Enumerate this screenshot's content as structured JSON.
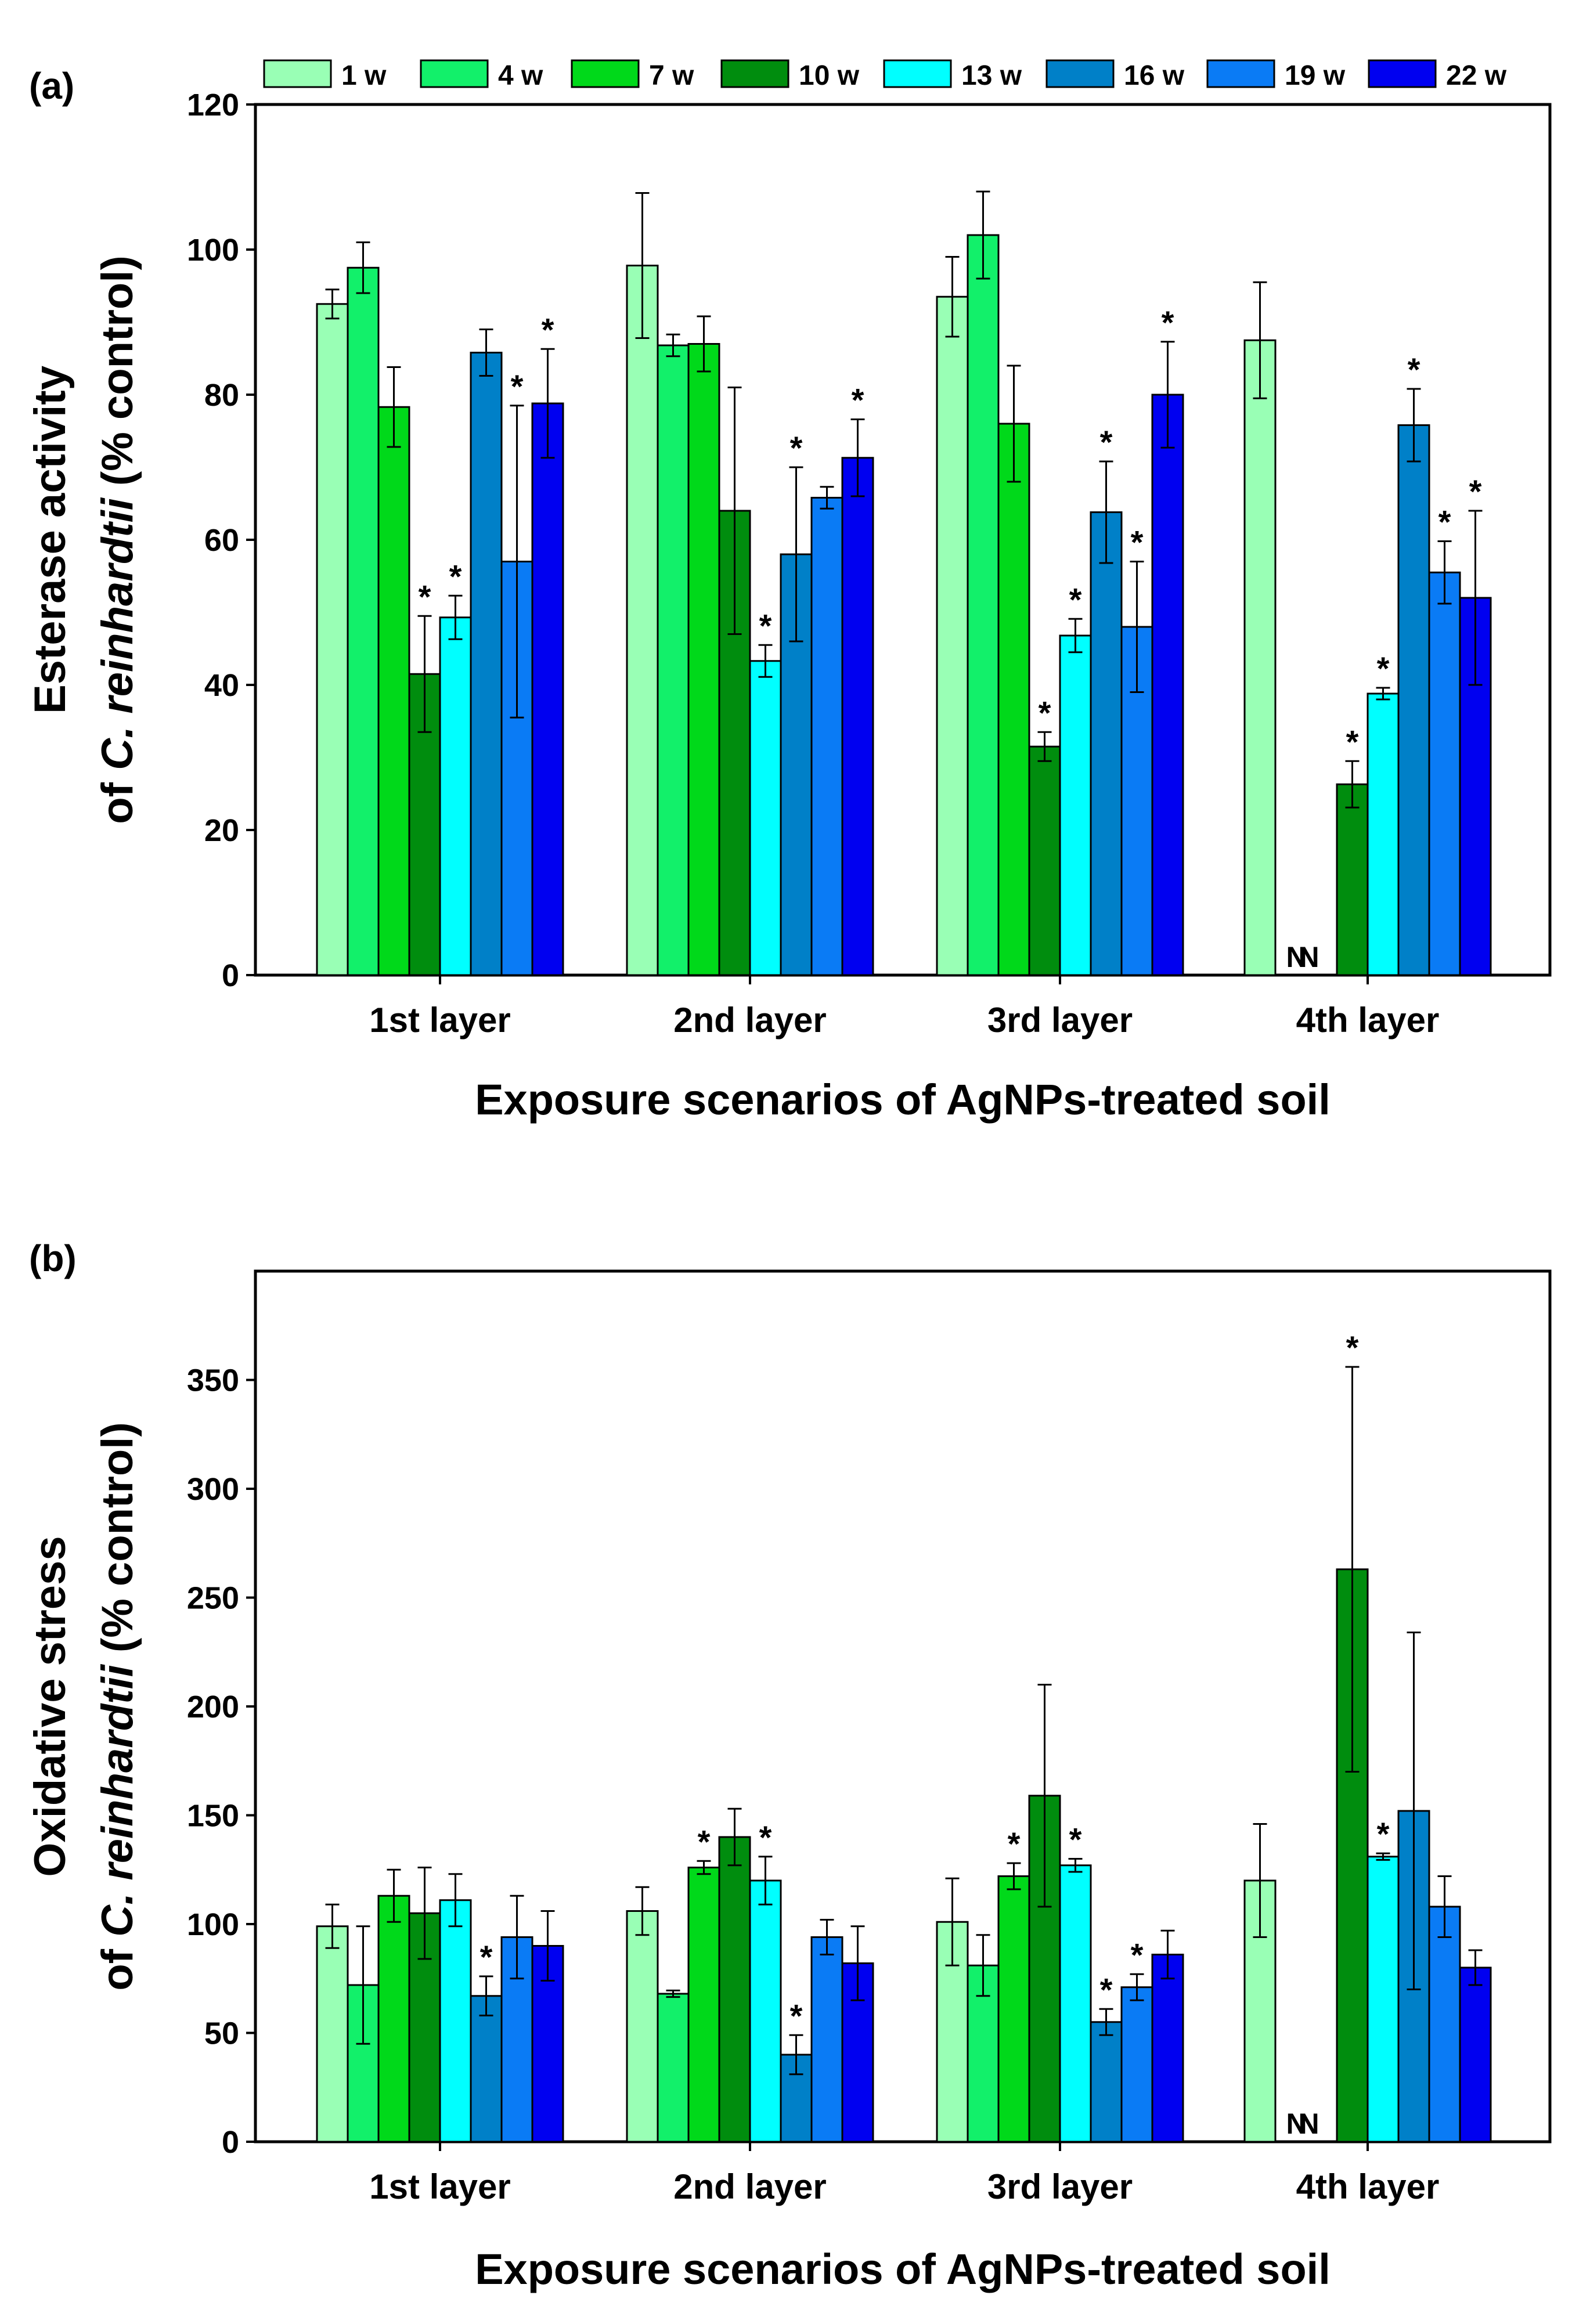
{
  "legend": {
    "labels": [
      "1 w",
      "4 w",
      "7 w",
      "10 w",
      "13 w",
      "16 w",
      "19 w",
      "22 w"
    ],
    "colors": [
      "#99ffb5",
      "#12f06a",
      "#00d91a",
      "#008d0e",
      "#00ffff",
      "#0080c8",
      "#0a7bf5",
      "#0000f0"
    ]
  },
  "chart_data": [
    {
      "type": "bar",
      "panel_label": "(a)",
      "ylabel_line1": "Esterase activity",
      "ylabel_line2_prefix": "of ",
      "ylabel_line2_species": "C. reinhardtii",
      "ylabel_line2_suffix": " (% control)",
      "xlabel": "Exposure scenarios of AgNPs-treated soil",
      "categories": [
        "1st layer",
        "2nd layer",
        "3rd layer",
        "4th layer"
      ],
      "ylim": [
        0,
        120
      ],
      "yticks": [
        0,
        20,
        40,
        60,
        80,
        100,
        120
      ],
      "series": [
        {
          "name": "1 w",
          "values": [
            92.5,
            97.8,
            93.5,
            87.5
          ],
          "errors": [
            2.0,
            10.0,
            5.5,
            8.0
          ],
          "stars": [
            false,
            false,
            false,
            false
          ]
        },
        {
          "name": "4 w",
          "values": [
            97.5,
            86.8,
            102.0,
            null
          ],
          "errors": [
            3.5,
            1.5,
            6.0,
            null
          ],
          "stars": [
            false,
            false,
            false,
            false
          ]
        },
        {
          "name": "7 w",
          "values": [
            78.3,
            87.0,
            76.0,
            null
          ],
          "errors": [
            5.5,
            3.8,
            8.0,
            null
          ],
          "stars": [
            false,
            false,
            false,
            false
          ]
        },
        {
          "name": "10 w",
          "values": [
            41.5,
            64.0,
            31.5,
            26.3
          ],
          "errors": [
            8.0,
            17.0,
            2.0,
            3.2
          ],
          "stars": [
            true,
            false,
            true,
            true
          ]
        },
        {
          "name": "13 w",
          "values": [
            49.3,
            43.3,
            46.8,
            38.8
          ],
          "errors": [
            3.0,
            2.2,
            2.3,
            0.8
          ],
          "stars": [
            true,
            true,
            true,
            true
          ]
        },
        {
          "name": "16 w",
          "values": [
            85.8,
            58.0,
            63.8,
            75.8
          ],
          "errors": [
            3.2,
            12.0,
            7.0,
            5.0
          ],
          "stars": [
            false,
            true,
            true,
            true
          ]
        },
        {
          "name": "19 w",
          "values": [
            57.0,
            65.8,
            48.0,
            55.5
          ],
          "errors": [
            21.5,
            1.5,
            9.0,
            4.3
          ],
          "stars": [
            true,
            false,
            true,
            true
          ]
        },
        {
          "name": "22 w",
          "values": [
            78.8,
            71.3,
            80.0,
            52.0
          ],
          "errors": [
            7.5,
            5.3,
            7.3,
            12.0
          ],
          "stars": [
            true,
            true,
            true,
            true
          ]
        }
      ],
      "na_marks": [
        {
          "category": "4th layer",
          "series": [
            "4 w",
            "7 w"
          ],
          "text": "N"
        }
      ]
    },
    {
      "type": "bar",
      "panel_label": "(b)",
      "ylabel_line1": "Oxidative stress",
      "ylabel_line2_prefix": "of ",
      "ylabel_line2_species": "C. reinhardtii",
      "ylabel_line2_suffix": " (% control)",
      "xlabel": "Exposure scenarios of AgNPs-treated soil",
      "categories": [
        "1st layer",
        "2nd layer",
        "3rd layer",
        "4th layer"
      ],
      "ylim": [
        0,
        400
      ],
      "yticks": [
        0,
        50,
        100,
        150,
        200,
        250,
        300,
        350
      ],
      "series": [
        {
          "name": "1 w",
          "values": [
            99,
            106,
            101,
            120
          ],
          "errors": [
            10,
            11,
            20,
            26
          ],
          "stars": [
            false,
            false,
            false,
            false
          ]
        },
        {
          "name": "4 w",
          "values": [
            72,
            68,
            81,
            null
          ],
          "errors": [
            27,
            1.5,
            14,
            null
          ],
          "stars": [
            false,
            false,
            false,
            false
          ]
        },
        {
          "name": "7 w",
          "values": [
            113,
            126,
            122,
            null
          ],
          "errors": [
            12,
            3,
            6,
            null
          ],
          "stars": [
            false,
            true,
            true,
            false
          ]
        },
        {
          "name": "10 w",
          "values": [
            105,
            140,
            159,
            263
          ],
          "errors": [
            21,
            13,
            51,
            93
          ],
          "stars": [
            false,
            false,
            false,
            true
          ]
        },
        {
          "name": "13 w",
          "values": [
            111,
            120,
            127,
            131
          ],
          "errors": [
            12,
            11,
            3,
            1.5
          ],
          "stars": [
            false,
            true,
            true,
            true
          ]
        },
        {
          "name": "16 w",
          "values": [
            67,
            40,
            55,
            152
          ],
          "errors": [
            9,
            9,
            6,
            82
          ],
          "stars": [
            true,
            true,
            true,
            false
          ]
        },
        {
          "name": "19 w",
          "values": [
            94,
            94,
            71,
            108
          ],
          "errors": [
            19,
            8,
            6,
            14
          ],
          "stars": [
            false,
            false,
            true,
            false
          ]
        },
        {
          "name": "22 w",
          "values": [
            90,
            82,
            86,
            80
          ],
          "errors": [
            16,
            17,
            11,
            8
          ],
          "stars": [
            false,
            false,
            false,
            false
          ]
        }
      ],
      "na_marks": [
        {
          "category": "4th layer",
          "series": [
            "4 w",
            "7 w"
          ],
          "text": "N"
        }
      ]
    }
  ]
}
